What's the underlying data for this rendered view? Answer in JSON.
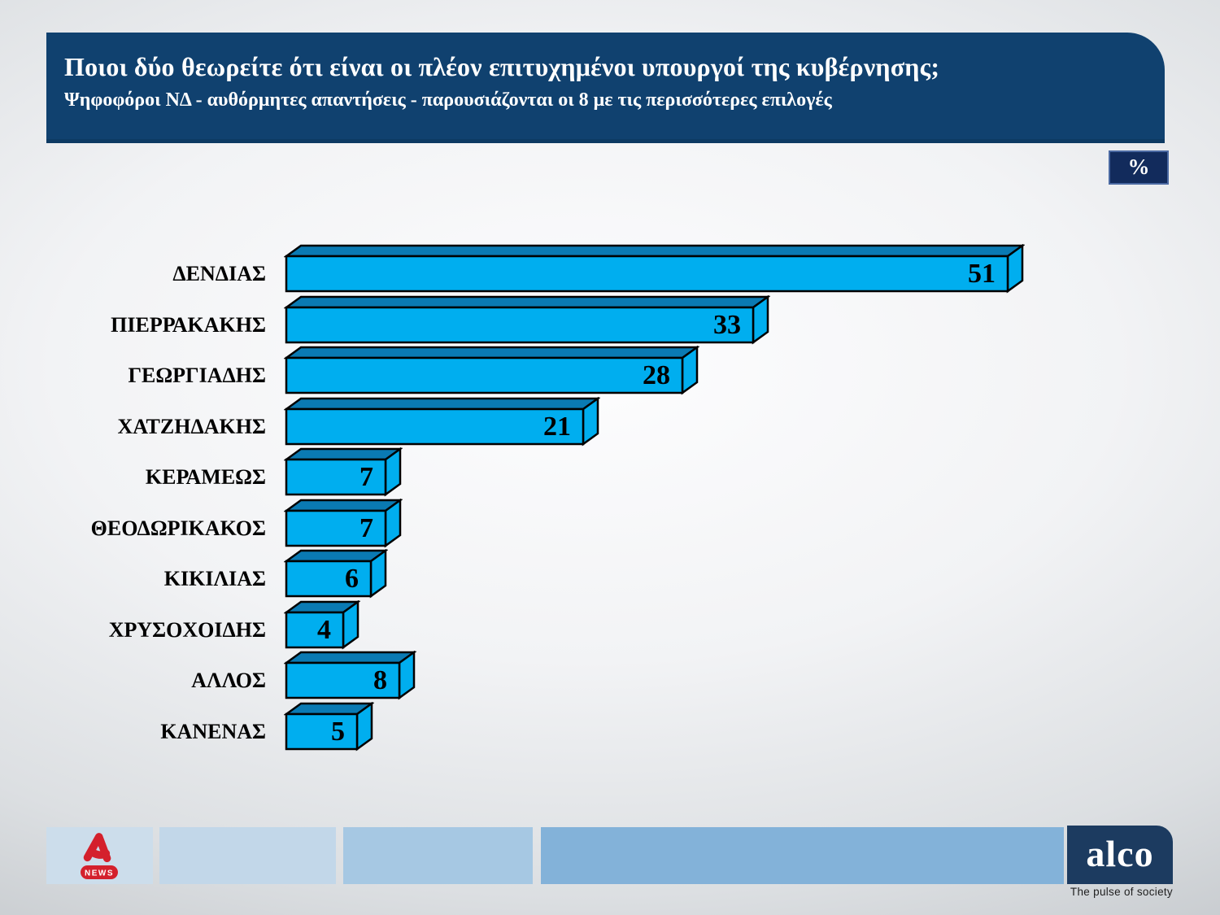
{
  "header": {
    "title": "Ποιοι δύο θεωρείτε ότι είναι οι πλέον επιτυχημένοι υπουργοί της κυβέρνησης;",
    "subtitle": "Ψηφοφόροι ΝΔ - αυθόρμητες απαντήσεις - παρουσιάζονται οι 8 με τις περισσότερες επιλογές"
  },
  "unit_badge": "%",
  "chart_data": {
    "type": "bar",
    "orientation": "horizontal",
    "unit": "%",
    "categories": [
      "ΔΕΝΔΙΑΣ",
      "ΠΙΕΡΡΑΚΑΚΗΣ",
      "ΓΕΩΡΓΙΑΔΗΣ",
      "ΧΑΤΖΗΔΑΚΗΣ",
      "ΚΕΡΑΜΕΩΣ",
      "ΘΕΟΔΩΡΙΚΑΚΟΣ",
      "ΚΙΚΙΛΙΑΣ",
      "ΧΡΥΣΟΧΟΙΔΗΣ",
      "ΑΛΛΟΣ",
      "ΚΑΝΕΝΑΣ"
    ],
    "values": [
      51,
      33,
      28,
      21,
      7,
      7,
      6,
      4,
      8,
      5
    ],
    "value_labels_position": "inside-right",
    "bar_color": "#00AEEF",
    "bar_top_color": "#0A7AB3",
    "bar_outline_color": "#000000",
    "style": "3d-horizontal-bars",
    "xlim": [
      0,
      53
    ],
    "grid": false,
    "legend": false
  },
  "colors": {
    "header_bg": "#10416F",
    "badge_bg": "#122B5C",
    "badge_border": "#4A69A2",
    "alpha_red": "#D4202C",
    "alco_navy": "#1C3B60"
  },
  "footer": {
    "alpha_news_label": "NEWS",
    "alco_wordmark": "alco",
    "alco_tagline": "The pulse of society"
  }
}
